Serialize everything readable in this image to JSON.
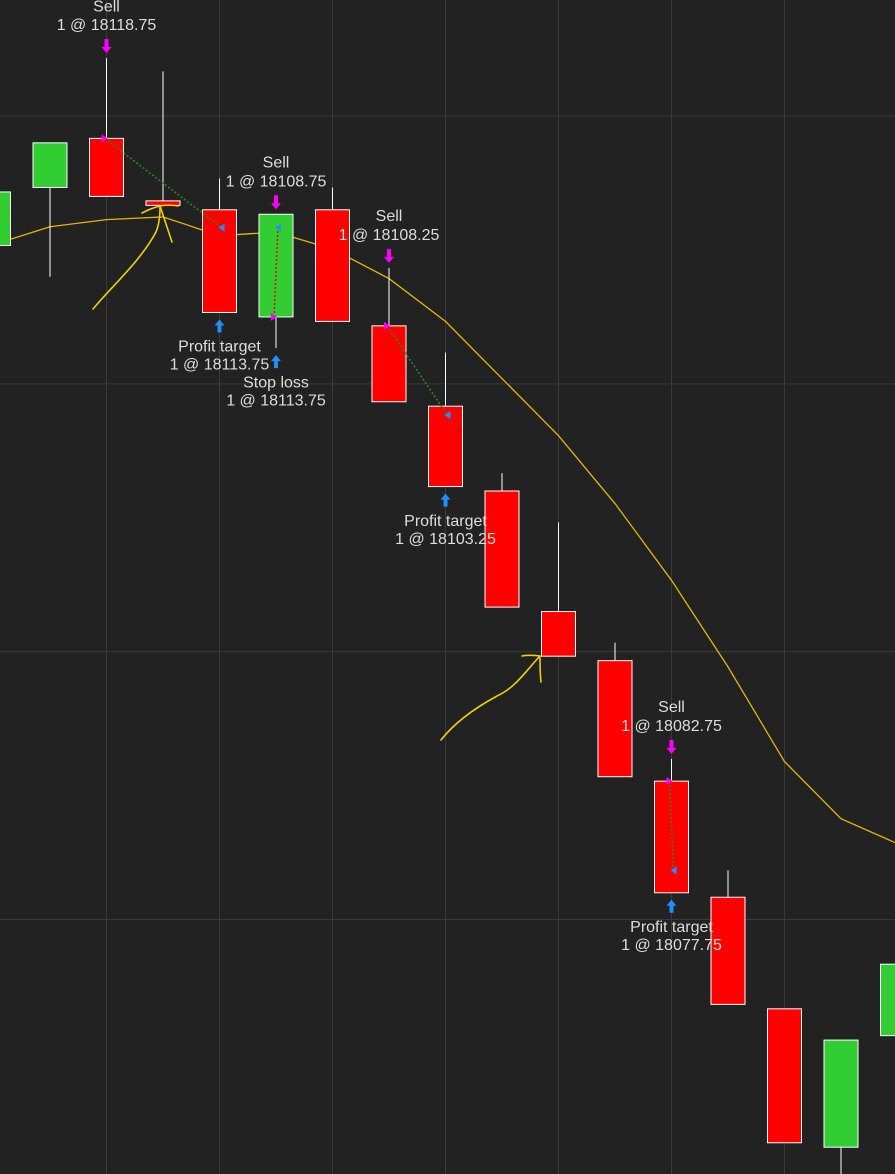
{
  "chart_data": {
    "type": "candlestick",
    "categories": [
      null,
      null,
      null,
      null,
      null,
      null,
      null,
      null,
      null,
      null,
      null,
      null,
      null,
      null,
      null,
      null,
      null
    ],
    "open": [
      18112.75,
      18116.0,
      18118.75,
      18115.25,
      18114.75,
      18108.75,
      18114.75,
      18108.25,
      18103.75,
      18099.0,
      18092.25,
      18089.5,
      18082.75,
      18076.25,
      18070.0,
      18062.25,
      18068.5
    ],
    "high": [
      18115.75,
      18118.5,
      18123.25,
      18122.5,
      18116.5,
      18114.5,
      18116.0,
      18111.5,
      18106.75,
      18100.0,
      18097.25,
      18090.5,
      18084.0,
      18077.75,
      18070.0,
      18068.25,
      18072.5
    ],
    "low": [
      18112.75,
      18111.0,
      18115.5,
      18115.0,
      18109.0,
      18107.0,
      18108.5,
      18104.0,
      18099.25,
      18092.5,
      18089.75,
      18083.0,
      18076.5,
      18070.25,
      18062.5,
      18060.75,
      18068.5
    ],
    "close": [
      18115.75,
      18118.5,
      18115.5,
      18115.0,
      18109.0,
      18114.5,
      18108.5,
      18104.0,
      18099.25,
      18092.5,
      18089.75,
      18083.0,
      18076.5,
      18070.25,
      18062.5,
      18068.25,
      18072.5
    ],
    "up_color": "#32cd32",
    "down_color": "#ff0000",
    "ylim": [
      18060.75,
      18126.5
    ],
    "yticks": [
      18075,
      18090,
      18105,
      18120
    ],
    "grid": true,
    "moving_average": {
      "color": "#e0b800",
      "values": [
        18112.8,
        18113.8,
        18114.2,
        18114.35,
        18113.3,
        18113.5,
        18112.55,
        18110.9,
        18108.5,
        18105.3,
        18102.1,
        18098.3,
        18094.0,
        18089.15,
        18083.85,
        18080.65,
        18079.25
      ]
    },
    "trades": [
      {
        "line_color": "#1f8f1f",
        "entry": {
          "action": "Sell",
          "label": "1 @ 18118.75",
          "price": 18118.75,
          "bar": 2
        },
        "exit": {
          "action": "Profit target",
          "label": "1 @ 18113.75",
          "price": 18113.75,
          "bar": 4
        }
      },
      {
        "line_color": "#e01010",
        "entry": {
          "action": "Sell",
          "label": "1 @ 18108.75",
          "price": 18108.75,
          "bar": 5
        },
        "exit": {
          "action": "Stop loss",
          "label": "1 @ 18113.75",
          "price": 18113.75,
          "bar": 5
        }
      },
      {
        "line_color": "#1f8f1f",
        "entry": {
          "action": "Sell",
          "label": "1 @ 18108.25",
          "price": 18108.25,
          "bar": 7
        },
        "exit": {
          "action": "Profit target",
          "label": "1 @ 18103.25",
          "price": 18103.25,
          "bar": 8
        }
      },
      {
        "line_color": "#1f8f1f",
        "entry": {
          "action": "Sell",
          "label": "1 @ 18082.75",
          "price": 18082.75,
          "bar": 12
        },
        "exit": {
          "action": "Profit target",
          "label": "1 @ 18077.75",
          "price": 18077.75,
          "bar": 12
        }
      }
    ]
  }
}
